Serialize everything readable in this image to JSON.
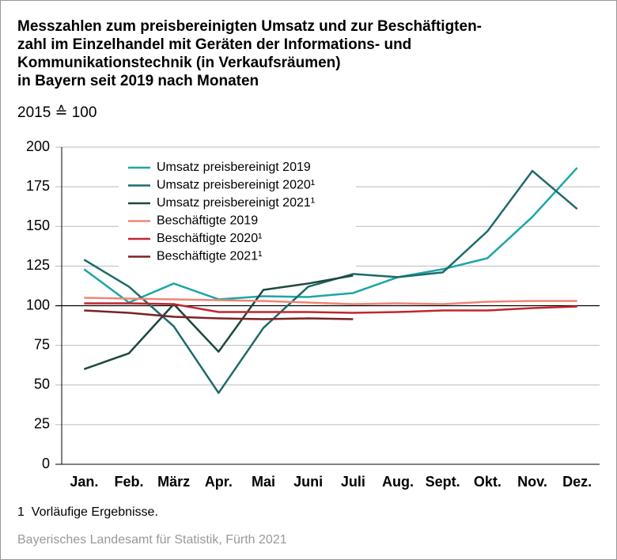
{
  "chart_data": {
    "type": "line",
    "title": [
      "Messzahlen zum preisbereinigten Umsatz und zur Beschäftigten-",
      "zahl im Einzelhandel mit Geräten der Informations- und",
      "Kommunikationstechnik (in Verkaufsräumen)",
      "in Bayern seit 2019 nach Monaten"
    ],
    "subtitle": "2015 ≙ 100",
    "categories": [
      "Jan.",
      "Feb.",
      "März",
      "Apr.",
      "Mai",
      "Juni",
      "Juli",
      "Aug.",
      "Sept.",
      "Okt.",
      "Nov.",
      "Dez."
    ],
    "series": [
      {
        "name": "Umsatz preisbereinigt 2019",
        "color": "#1ea5a5",
        "values": [
          123,
          102,
          114,
          104,
          106,
          105.5,
          108,
          118,
          123,
          130,
          156,
          187
        ]
      },
      {
        "name": "Umsatz preisbereinigt 2020¹",
        "color": "#1f6a6a",
        "values": [
          129,
          112,
          87,
          45,
          86,
          112,
          120,
          118,
          121,
          147,
          185,
          161
        ]
      },
      {
        "name": "Umsatz preisbereinigt 2021¹",
        "color": "#1d4840",
        "values": [
          60,
          70,
          101,
          71,
          110,
          114,
          119,
          null,
          null,
          null,
          null,
          null
        ]
      },
      {
        "name": "Beschäftigte 2019",
        "color": "#ef8577",
        "values": [
          105,
          104.5,
          104,
          103.5,
          103,
          102,
          101,
          101.5,
          101,
          102.5,
          103,
          103
        ]
      },
      {
        "name": "Beschäftigte 2020¹",
        "color": "#c0272d",
        "values": [
          101.5,
          101.5,
          101,
          96,
          96,
          96,
          95.5,
          96,
          97,
          97,
          98.5,
          99.5
        ]
      },
      {
        "name": "Beschäftigte 2021¹",
        "color": "#7b2222",
        "values": [
          97,
          95.5,
          93,
          92,
          91.5,
          92,
          91.5,
          null,
          null,
          null,
          null,
          null
        ]
      }
    ],
    "ylim": [
      0,
      200
    ],
    "yticks": [
      0,
      25,
      50,
      75,
      100,
      125,
      150,
      175,
      200
    ],
    "grid": true,
    "reference_line": 100,
    "legend": "upper left",
    "footnote": "1  Vorläufige Ergebnisse.",
    "source": "Bayerisches Landesamt für Statistik, Fürth 2021"
  }
}
